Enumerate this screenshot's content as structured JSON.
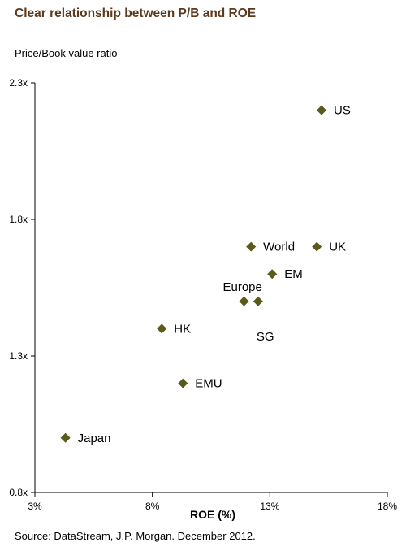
{
  "chart_data": {
    "type": "scatter",
    "title": "Clear relationship between P/B and ROE",
    "ylabel": "Price/Book value ratio",
    "xlabel": "ROE (%)",
    "source": "Source: DataStream, J.P. Morgan. December 2012.",
    "xlim": [
      3,
      18
    ],
    "ylim": [
      0.8,
      2.3
    ],
    "x_ticks": [
      "3%",
      "8%",
      "13%",
      "18%"
    ],
    "y_ticks": [
      "0.8x",
      "1.3x",
      "1.8x",
      "2.3x"
    ],
    "marker": "diamond",
    "marker_color": "#5a5a1a",
    "grid": false,
    "points": [
      {
        "label": "US",
        "x": 15.2,
        "y": 2.2
      },
      {
        "label": "UK",
        "x": 15.0,
        "y": 1.7
      },
      {
        "label": "World",
        "x": 12.2,
        "y": 1.7
      },
      {
        "label": "EM",
        "x": 13.1,
        "y": 1.6
      },
      {
        "label": "Europe",
        "x": 11.9,
        "y": 1.5
      },
      {
        "label": "SG",
        "x": 12.5,
        "y": 1.5
      },
      {
        "label": "HK",
        "x": 8.4,
        "y": 1.4
      },
      {
        "label": "EMU",
        "x": 9.3,
        "y": 1.2
      },
      {
        "label": "Japan",
        "x": 4.3,
        "y": 1.0
      }
    ]
  }
}
